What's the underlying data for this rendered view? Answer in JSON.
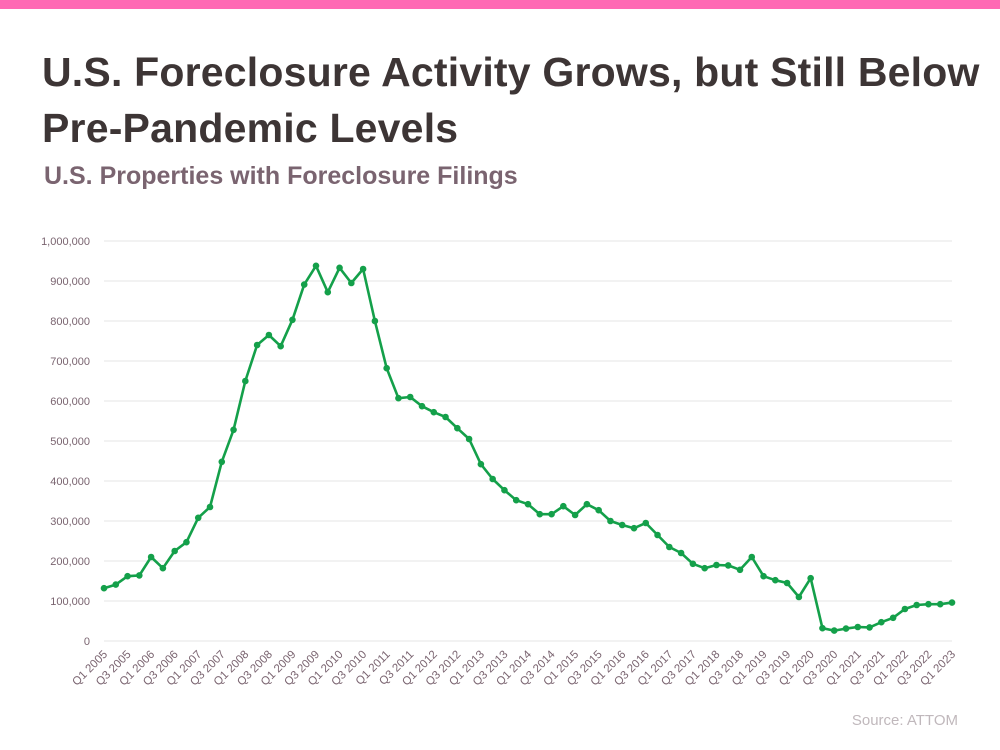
{
  "header": {
    "title": "U.S. Foreclosure Activity Grows, but Still Below Pre-Pandemic Levels",
    "subtitle": "U.S. Properties with Foreclosure Filings"
  },
  "footer": {
    "source": "Source: ATTOM"
  },
  "colors": {
    "accent_bar": "#ff69b4",
    "series_line": "#14a04a",
    "grid": "#e6e6e6",
    "tick_text": "#7a6470"
  },
  "chart_data": {
    "type": "line",
    "title": "",
    "xlabel": "",
    "ylabel": "",
    "ylim": [
      0,
      1000000
    ],
    "yticks": [
      0,
      100000,
      200000,
      300000,
      400000,
      500000,
      600000,
      700000,
      800000,
      900000,
      1000000
    ],
    "ytick_labels": [
      "0",
      "100,000",
      "200,000",
      "300,000",
      "400,000",
      "500,000",
      "600,000",
      "700,000",
      "800,000",
      "900,000",
      "1,000,000"
    ],
    "grid": true,
    "legend": "none",
    "x": [
      "Q1 2005",
      "Q2 2005",
      "Q3 2005",
      "Q4 2005",
      "Q1 2006",
      "Q2 2006",
      "Q3 2006",
      "Q4 2006",
      "Q1 2007",
      "Q2 2007",
      "Q3 2007",
      "Q4 2007",
      "Q1 2008",
      "Q2 2008",
      "Q3 2008",
      "Q4 2008",
      "Q1 2009",
      "Q2 2009",
      "Q3 2009",
      "Q4 2009",
      "Q1 2010",
      "Q2 2010",
      "Q3 2010",
      "Q4 2010",
      "Q1 2011",
      "Q2 2011",
      "Q3 2011",
      "Q4 2011",
      "Q1 2012",
      "Q2 2012",
      "Q3 2012",
      "Q4 2012",
      "Q1 2013",
      "Q2 2013",
      "Q3 2013",
      "Q4 2013",
      "Q1 2014",
      "Q2 2014",
      "Q3 2014",
      "Q4 2014",
      "Q1 2015",
      "Q2 2015",
      "Q3 2015",
      "Q4 2015",
      "Q1 2016",
      "Q2 2016",
      "Q3 2016",
      "Q4 2016",
      "Q1 2017",
      "Q2 2017",
      "Q3 2017",
      "Q4 2017",
      "Q1 2018",
      "Q2 2018",
      "Q3 2018",
      "Q4 2018",
      "Q1 2019",
      "Q2 2019",
      "Q3 2019",
      "Q4 2019",
      "Q1 2020",
      "Q2 2020",
      "Q3 2020",
      "Q4 2020",
      "Q1 2021",
      "Q2 2021",
      "Q3 2021",
      "Q4 2021",
      "Q1 2022",
      "Q2 2022",
      "Q3 2022",
      "Q4 2022",
      "Q1 2023"
    ],
    "xtick_labels": [
      "Q1 2005",
      "Q3 2005",
      "Q1 2006",
      "Q3 2006",
      "Q1 2007",
      "Q3 2007",
      "Q1 2008",
      "Q3 2008",
      "Q1 2009",
      "Q3 2009",
      "Q1 2010",
      "Q3 2010",
      "Q1 2011",
      "Q3 2011",
      "Q1 2012",
      "Q3 2012",
      "Q1 2013",
      "Q3 2013",
      "Q1 2014",
      "Q3 2014",
      "Q1 2015",
      "Q3 2015",
      "Q1 2016",
      "Q3 2016",
      "Q1 2017",
      "Q3 2017",
      "Q1 2018",
      "Q3 2018",
      "Q1 2019",
      "Q3 2019",
      "Q1 2020",
      "Q3 2020",
      "Q1 2021",
      "Q3 2021",
      "Q1 2022",
      "Q3 2022",
      "Q1 2023"
    ],
    "series": [
      {
        "values": [
          132000,
          141000,
          162000,
          164000,
          210000,
          182000,
          225000,
          247000,
          308000,
          335000,
          448000,
          528000,
          650000,
          740000,
          765000,
          737000,
          803000,
          891000,
          938000,
          872000,
          933000,
          895000,
          930000,
          800000,
          682000,
          607000,
          610000,
          587000,
          572000,
          560000,
          532000,
          505000,
          442000,
          405000,
          377000,
          352000,
          342000,
          317000,
          317000,
          337000,
          315000,
          342000,
          327000,
          300000,
          290000,
          282000,
          295000,
          265000,
          235000,
          220000,
          193000,
          182000,
          190000,
          189000,
          178000,
          210000,
          162000,
          152000,
          145000,
          110000,
          157000,
          32000,
          26000,
          31000,
          35000,
          34000,
          47000,
          58000,
          80000,
          90000,
          92000,
          92000,
          96000
        ]
      }
    ]
  }
}
